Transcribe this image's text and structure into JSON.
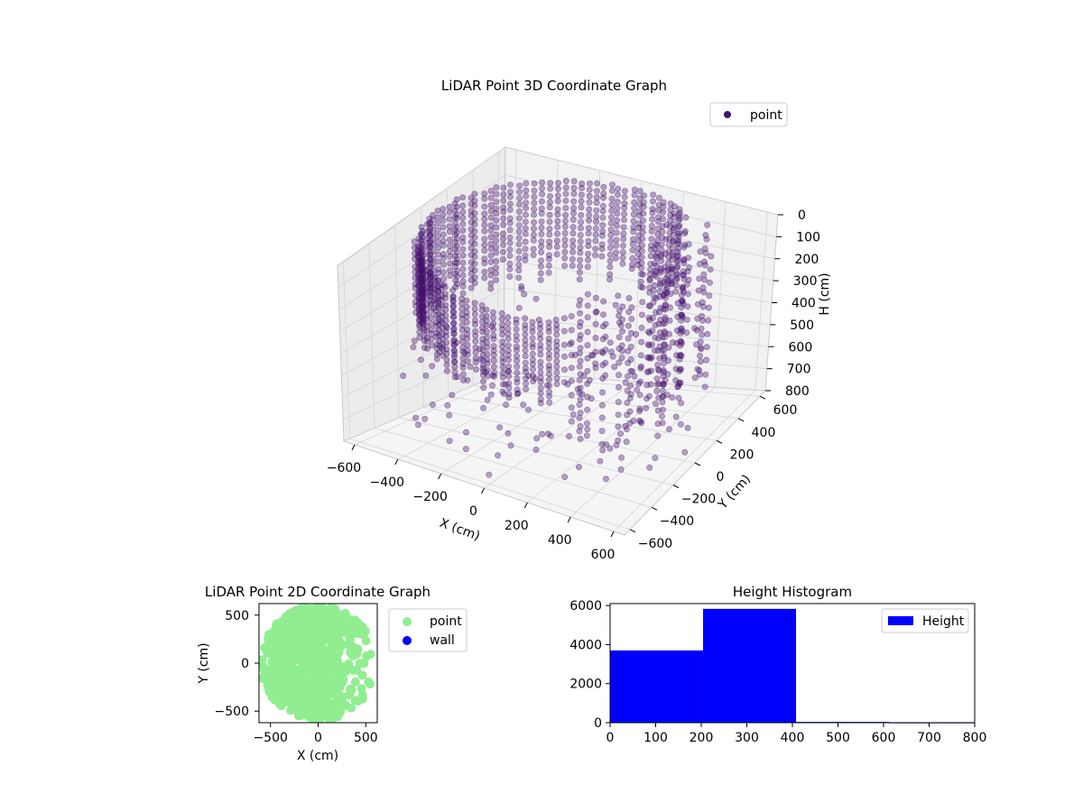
{
  "colors": {
    "point3d": "#440f6e",
    "point2d": "#90ee90",
    "wall": "#0000ff",
    "bar": "#0000ff",
    "pane": "#f2f2f2",
    "grid": "#d5d5d5"
  },
  "chart_data": [
    {
      "type": "scatter",
      "title": "LiDAR Point 3D Coordinate Graph",
      "xlabel": "X (cm)",
      "ylabel": "Y (cm)",
      "zlabel": "H (cm)",
      "xlim": [
        -650,
        650
      ],
      "ylim": [
        -650,
        650
      ],
      "zlim": [
        800,
        0
      ],
      "xticks": [
        "-600",
        "-400",
        "-200",
        "0",
        "200",
        "400",
        "600"
      ],
      "yticks": [
        "-600",
        "-400",
        "-200",
        "0",
        "200",
        "400",
        "600"
      ],
      "zticks": [
        "0",
        "100",
        "200",
        "300",
        "400",
        "500",
        "600",
        "700",
        "800"
      ],
      "legend": [
        "point"
      ],
      "legend_position": "top-right",
      "grid": true,
      "series": [
        {
          "name": "point",
          "note_shape": "ring of points ~ radius 550 cm, heights 0-800 cm"
        }
      ]
    },
    {
      "type": "scatter",
      "title": "LiDAR Point 2D Coordinate Graph",
      "xlabel": "X (cm)",
      "ylabel": "Y (cm)",
      "xlim": [
        -620,
        620
      ],
      "ylim": [
        -620,
        620
      ],
      "xticks": [
        "-500",
        "0",
        "500"
      ],
      "yticks": [
        "500",
        "0",
        "-500"
      ],
      "legend": [
        "point",
        "wall"
      ],
      "legend_position": "outside-right",
      "grid": false
    },
    {
      "type": "bar",
      "title": "Height Histogram",
      "xlabel": "",
      "ylabel": "",
      "bins": [
        [
          0,
          204
        ],
        [
          204,
          408
        ],
        [
          408,
          612
        ],
        [
          612,
          816
        ]
      ],
      "values": [
        3700,
        5830,
        40,
        5
      ],
      "xlim": [
        0,
        800
      ],
      "ylim": [
        0,
        6100
      ],
      "xticks": [
        "0",
        "100",
        "200",
        "300",
        "400",
        "500",
        "600",
        "700",
        "800"
      ],
      "yticks": [
        "0",
        "2000",
        "4000",
        "6000"
      ],
      "legend": [
        "Height"
      ],
      "legend_position": "top-right",
      "grid": false
    }
  ]
}
